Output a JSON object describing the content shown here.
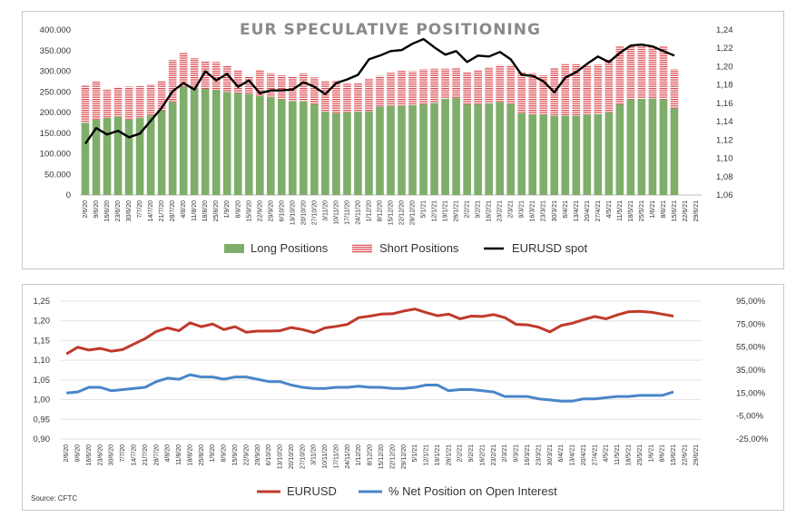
{
  "chart_data": [
    {
      "type": "bar",
      "title": "EUR SPECULATIVE POSITIONING",
      "categories": [
        "2/6/20",
        "9/6/20",
        "16/6/20",
        "23/6/20",
        "30/6/20",
        "7/7/20",
        "14/7/20",
        "21/7/20",
        "28/7/20",
        "4/8/20",
        "11/8/20",
        "18/8/20",
        "25/8/20",
        "1/9/20",
        "8/9/20",
        "15/9/20",
        "22/9/20",
        "29/9/20",
        "6/10/20",
        "13/10/20",
        "20/10/20",
        "27/10/20",
        "3/11/20",
        "10/11/20",
        "17/11/20",
        "24/11/20",
        "1/12/20",
        "8/12/20",
        "15/12/20",
        "22/12/20",
        "29/12/20",
        "5/1/21",
        "12/1/21",
        "19/1/21",
        "26/1/21",
        "2/2/21",
        "9/2/21",
        "16/2/21",
        "23/2/21",
        "2/3/21",
        "9/3/21",
        "16/3/21",
        "23/3/21",
        "30/3/21",
        "6/4/21",
        "13/4/21",
        "20/4/21",
        "27/4/21",
        "4/5/21",
        "11/5/21",
        "18/5/21",
        "25/5/21",
        "1/6/21",
        "8/6/21",
        "15/6/21",
        "22/6/21",
        "29/6/21"
      ],
      "series": [
        {
          "name": "Long Positions",
          "axis": "left",
          "color": "#7fae6a",
          "values": [
            175000,
            183000,
            187000,
            190000,
            183000,
            187000,
            193000,
            205000,
            225000,
            262000,
            260000,
            257000,
            255000,
            250000,
            247000,
            245000,
            240000,
            237000,
            232000,
            228000,
            227000,
            220000,
            202000,
            198000,
            200000,
            202000,
            203000,
            214000,
            216000,
            216000,
            218000,
            220000,
            223000,
            233000,
            235000,
            220000,
            220000,
            222000,
            225000,
            220000,
            198000,
            195000,
            195000,
            192000,
            192000,
            192000,
            195000,
            196000,
            200000,
            220000,
            232000,
            233000,
            234000,
            232000,
            210000,
            null,
            null
          ]
        },
        {
          "name": "Short Positions",
          "axis": "left",
          "color": "#d9434a",
          "values": [
            90000,
            92000,
            70000,
            72000,
            80000,
            77000,
            75000,
            72000,
            102000,
            82000,
            72000,
            68000,
            67000,
            63000,
            55000,
            42000,
            63000,
            58000,
            58000,
            58000,
            68000,
            65000,
            75000,
            80000,
            70000,
            70000,
            80000,
            75000,
            80000,
            85000,
            82000,
            85000,
            83000,
            73000,
            72000,
            78000,
            82000,
            88000,
            90000,
            95000,
            100000,
            100000,
            95000,
            115000,
            125000,
            125000,
            120000,
            120000,
            128000,
            140000,
            128000,
            130000,
            128000,
            128000,
            95000,
            null,
            null
          ]
        },
        {
          "name": "EURUSD spot",
          "axis": "right",
          "type": "line",
          "color": "#000000",
          "values": [
            1.116,
            1.133,
            1.126,
            1.13,
            1.123,
            1.127,
            1.141,
            1.155,
            1.173,
            1.182,
            1.175,
            1.195,
            1.185,
            1.192,
            1.178,
            1.185,
            1.171,
            1.174,
            1.174,
            1.175,
            1.183,
            1.178,
            1.17,
            1.182,
            1.186,
            1.191,
            1.208,
            1.212,
            1.217,
            1.218,
            1.225,
            1.23,
            1.221,
            1.213,
            1.217,
            1.205,
            1.212,
            1.211,
            1.216,
            1.208,
            1.191,
            1.19,
            1.184,
            1.172,
            1.188,
            1.194,
            1.203,
            1.211,
            1.205,
            1.215,
            1.223,
            1.224,
            1.222,
            1.217,
            1.212,
            null,
            null
          ]
        }
      ],
      "ylim": [
        0,
        400000
      ],
      "yticks": [
        "0",
        "50.000",
        "100.000",
        "150.000",
        "200.000",
        "250.000",
        "300.000",
        "350.000",
        "400.000"
      ],
      "y2lim": [
        1.06,
        1.24
      ],
      "y2ticks": [
        "1,06",
        "1,08",
        "1,10",
        "1,12",
        "1,14",
        "1,16",
        "1,18",
        "1,20",
        "1,22",
        "1,24"
      ],
      "legend": [
        "Long Positions",
        "Short Positions",
        "EURUSD spot"
      ],
      "legend_position": "bottom",
      "grid": false
    },
    {
      "type": "line",
      "title": "",
      "categories": [
        "2/6/20",
        "9/6/20",
        "16/6/20",
        "23/6/20",
        "30/6/20",
        "7/7/20",
        "14/7/20",
        "21/7/20",
        "28/7/20",
        "4/8/20",
        "11/8/20",
        "18/8/20",
        "25/8/20",
        "1/9/20",
        "8/9/20",
        "15/9/20",
        "22/9/20",
        "29/9/20",
        "6/10/20",
        "13/10/20",
        "20/10/20",
        "27/10/20",
        "3/11/20",
        "10/11/20",
        "17/11/20",
        "24/11/20",
        "1/12/20",
        "8/12/20",
        "15/12/20",
        "22/12/20",
        "29/12/20",
        "5/1/21",
        "12/1/21",
        "19/1/21",
        "26/1/21",
        "2/2/21",
        "9/2/21",
        "16/2/21",
        "23/2/21",
        "2/3/21",
        "9/3/21",
        "16/3/21",
        "23/3/21",
        "30/3/21",
        "6/4/21",
        "13/4/21",
        "20/4/21",
        "27/4/21",
        "4/5/21",
        "11/5/21",
        "18/5/21",
        "25/5/21",
        "1/6/21",
        "8/6/21",
        "15/6/21",
        "22/6/21",
        "29/6/21"
      ],
      "series": [
        {
          "name": "EURUSD",
          "axis": "left",
          "color": "#c0392b",
          "values": [
            1.116,
            1.133,
            1.126,
            1.13,
            1.123,
            1.127,
            1.141,
            1.155,
            1.173,
            1.182,
            1.175,
            1.195,
            1.185,
            1.192,
            1.178,
            1.185,
            1.171,
            1.174,
            1.174,
            1.175,
            1.183,
            1.178,
            1.17,
            1.182,
            1.186,
            1.191,
            1.208,
            1.212,
            1.217,
            1.218,
            1.225,
            1.23,
            1.221,
            1.213,
            1.217,
            1.205,
            1.212,
            1.211,
            1.216,
            1.208,
            1.191,
            1.19,
            1.184,
            1.172,
            1.188,
            1.194,
            1.203,
            1.211,
            1.205,
            1.215,
            1.223,
            1.224,
            1.222,
            1.217,
            1.212,
            null,
            null
          ]
        },
        {
          "name": "% Net Position on Open Interest",
          "axis": "right",
          "color": "#4a86c8",
          "values": [
            15,
            16,
            20,
            20,
            17,
            18,
            19,
            20,
            25,
            28,
            27,
            31,
            29,
            29,
            27,
            29,
            29,
            27,
            25,
            25,
            22,
            20,
            19,
            19,
            20,
            20,
            21,
            20,
            20,
            19,
            19,
            20,
            22,
            22,
            17,
            18,
            18,
            17,
            16,
            12,
            12,
            12,
            10,
            9,
            8,
            8,
            10,
            10,
            11,
            12,
            12,
            13,
            13,
            13,
            16,
            null,
            null
          ]
        }
      ],
      "ylim": [
        0.9,
        1.25
      ],
      "yticks": [
        "0,90",
        "0,95",
        "1,00",
        "1,05",
        "1,10",
        "1,15",
        "1,20",
        "1,25"
      ],
      "y2lim": [
        -25,
        95
      ],
      "y2ticks": [
        "-25,00%",
        "-5,00%",
        "15,00%",
        "35,00%",
        "55,00%",
        "75,00%",
        "95,00%"
      ],
      "legend": [
        "EURUSD",
        "% Net Position on Open Interest"
      ],
      "legend_position": "bottom",
      "grid": true
    }
  ],
  "source": "Source: CFTC"
}
